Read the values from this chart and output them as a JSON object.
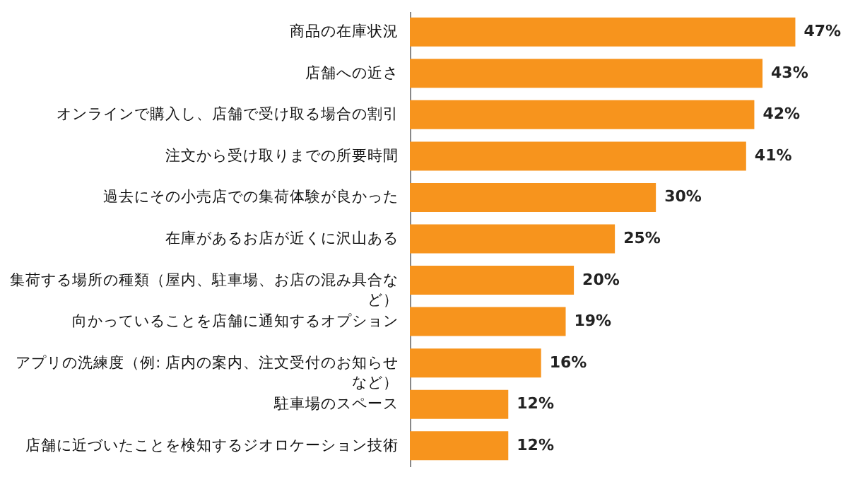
{
  "chart_data": {
    "type": "bar",
    "orientation": "horizontal",
    "categories": [
      "商品の在庫状況",
      "店舗への近さ",
      "オンラインで購入し、店舗で受け取る場合の割引",
      "注文から受け取りまでの所要時間",
      "過去にその小売店での集荷体験が良かった",
      "在庫があるお店が近くに沢山ある",
      "集荷する場所の種類（屋内、駐車場、お店の混み具合など）",
      "向かっていることを店舗に通知するオプション",
      "アプリの洗練度（例: 店内の案内、注文受付のお知らせなど）",
      "駐車場のスペース",
      "店舗に近づいたことを検知するジオロケーション技術"
    ],
    "values": [
      47,
      43,
      42,
      41,
      30,
      25,
      20,
      19,
      16,
      12,
      12
    ],
    "value_labels": [
      "47%",
      "43%",
      "42%",
      "41%",
      "30%",
      "25%",
      "20%",
      "19%",
      "16%",
      "12%",
      "12%"
    ],
    "color": "#f7941d",
    "grid": false
  }
}
